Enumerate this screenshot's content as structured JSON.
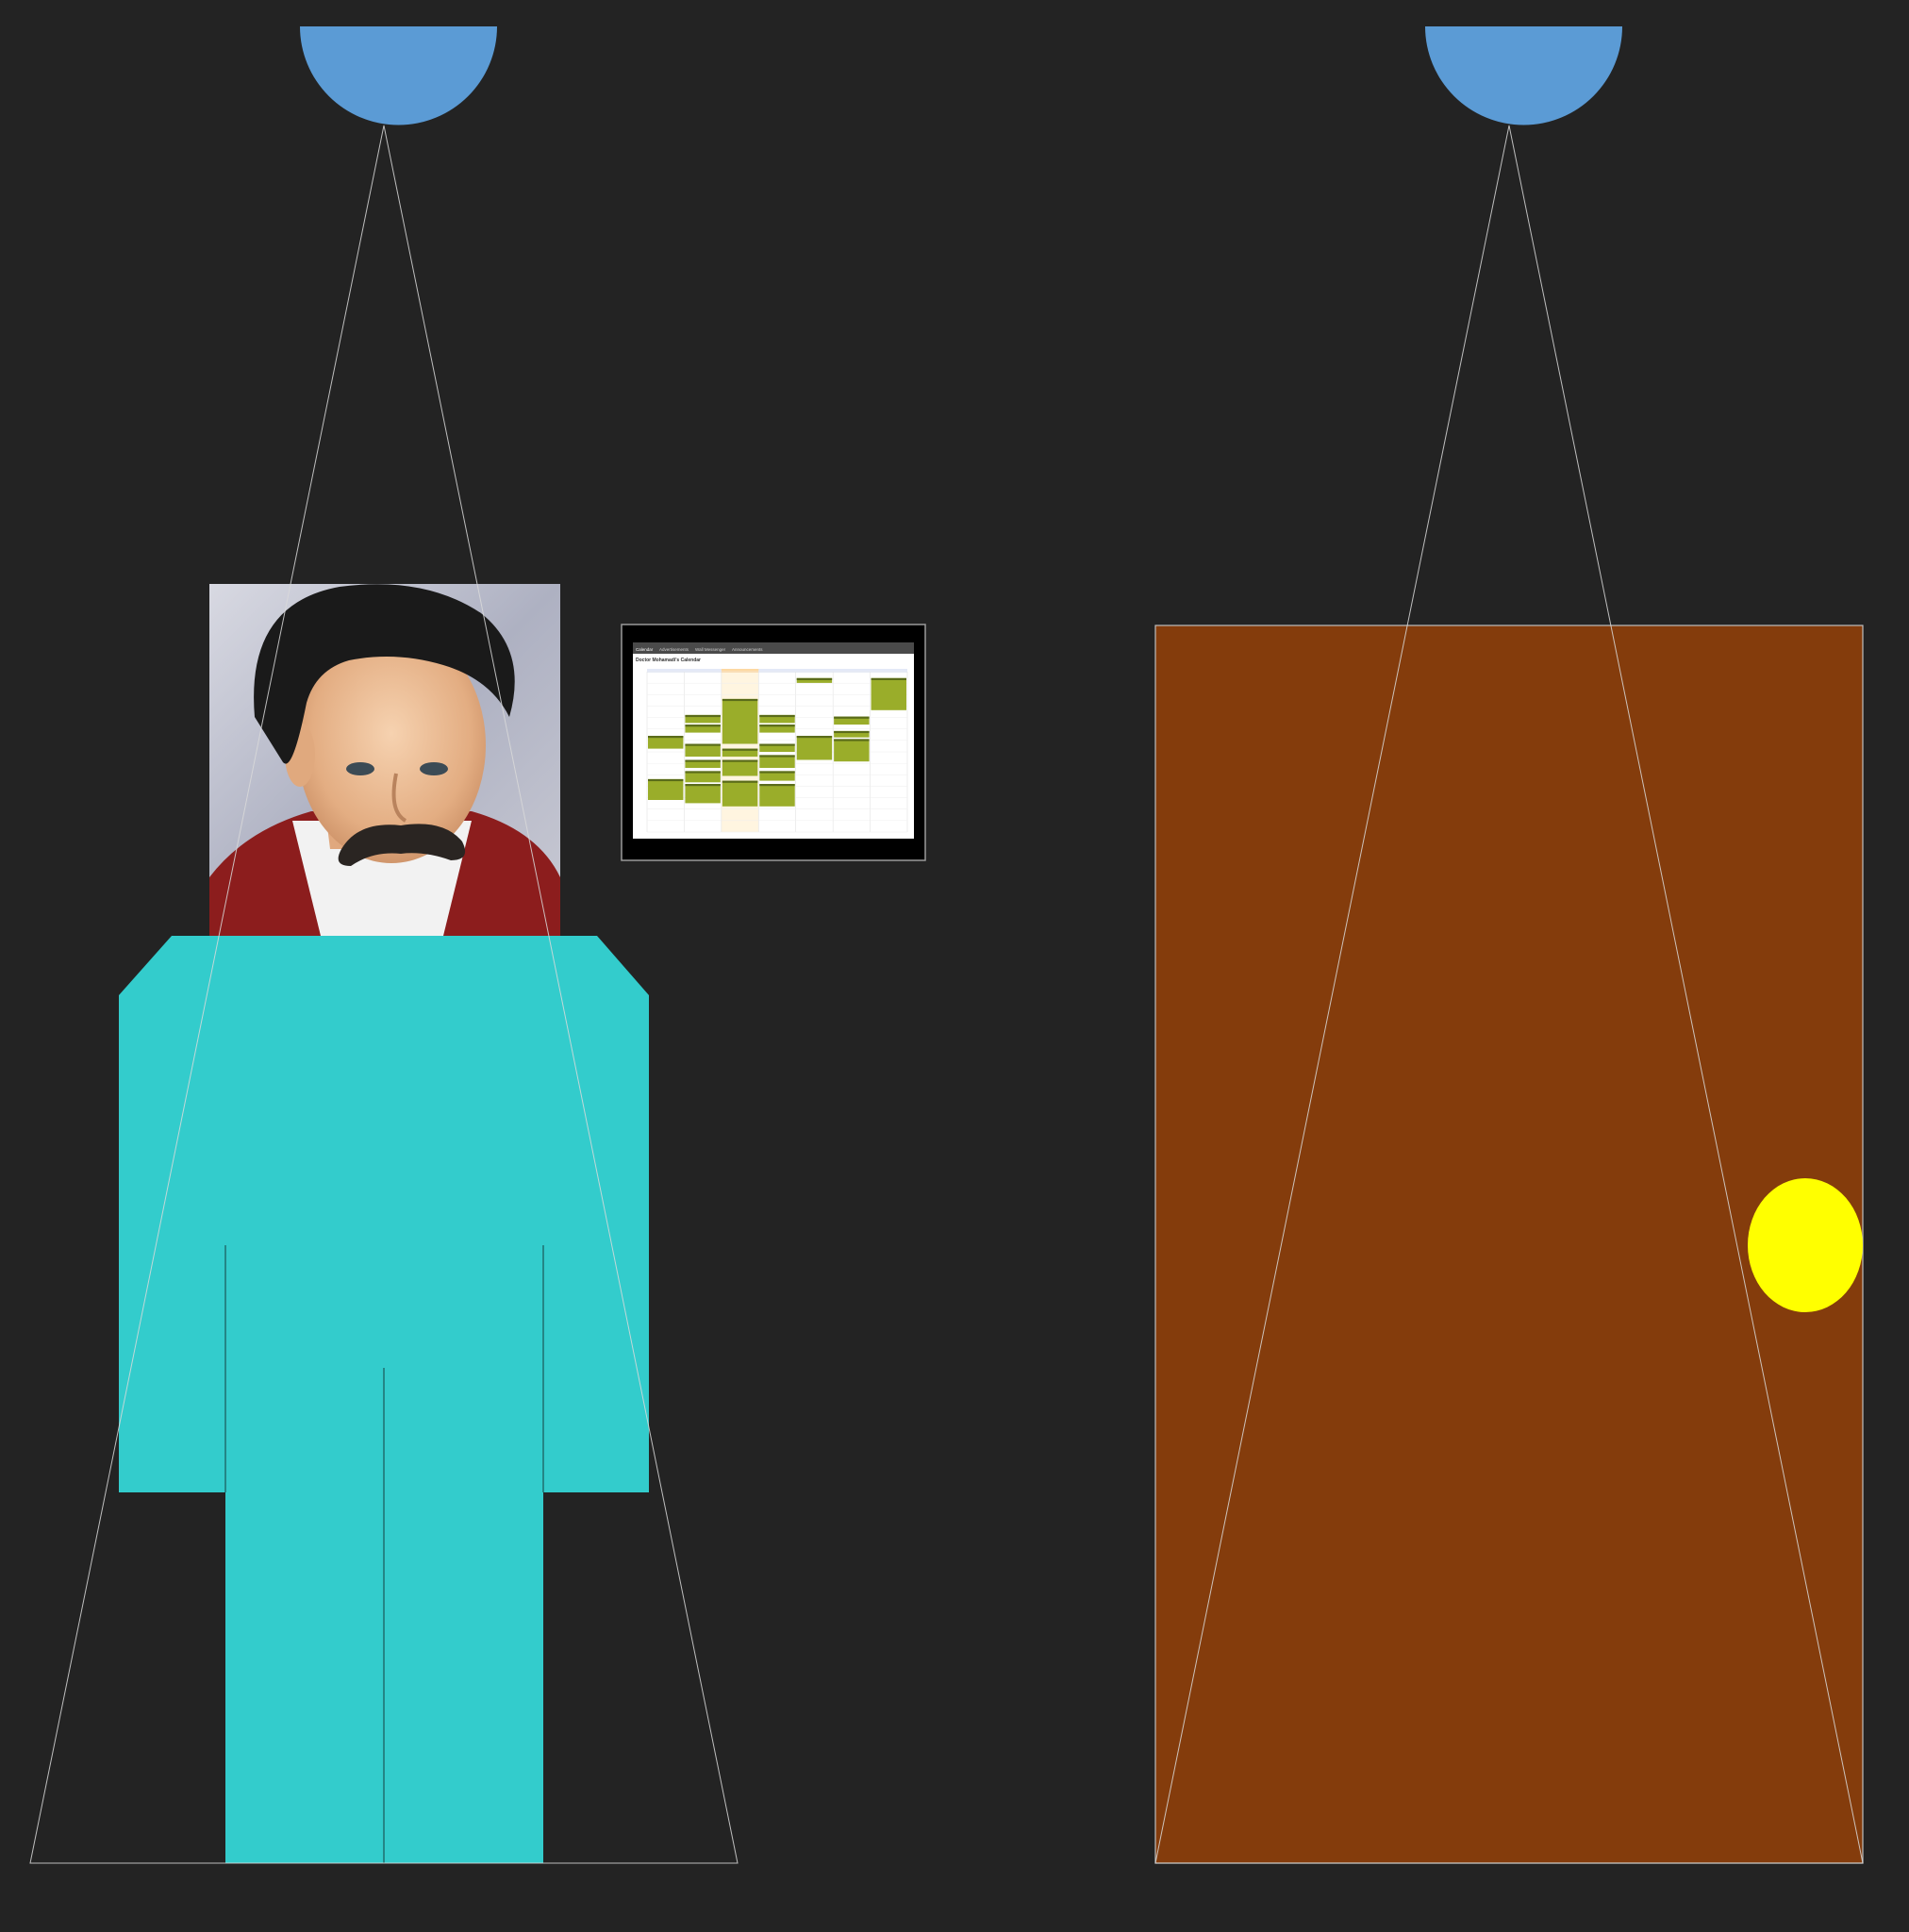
{
  "scene": {
    "background": "#232323",
    "lamp_color": "#5b9bd5",
    "light_beam_color": "#d9d9d9",
    "person_color": "#33cccc",
    "door_color": "#843c0c",
    "door_outline": "#bfbfbf",
    "doorknob_color": "#ffff00"
  },
  "tablet": {
    "tabs": [
      "Calendar",
      "Advertisements",
      "Wall Messenger",
      "Announcements"
    ],
    "calendar_title": "Doctor Mohamadi's Calendar",
    "theme_event": "#9aad2a",
    "theme_header": "#5a6b1a",
    "theme_today": "#fdd9a3"
  },
  "portrait": {
    "hair": "#1a1a1a",
    "skin": "#e8b890",
    "mustache": "#2a2522",
    "jacket": "#8c1d1d",
    "shirt": "#f2f2f2",
    "backdrop": "#b9bcc9"
  }
}
